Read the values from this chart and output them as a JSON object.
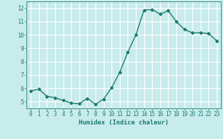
{
  "x": [
    0,
    1,
    2,
    3,
    4,
    5,
    6,
    7,
    8,
    9,
    10,
    11,
    12,
    13,
    14,
    15,
    16,
    17,
    18,
    19,
    20,
    21,
    22,
    23
  ],
  "y": [
    5.8,
    5.95,
    5.4,
    5.3,
    5.1,
    4.9,
    4.85,
    5.25,
    4.8,
    5.2,
    6.05,
    7.2,
    8.7,
    10.0,
    11.85,
    11.9,
    11.55,
    11.8,
    11.0,
    10.4,
    10.15,
    10.15,
    10.1,
    9.55
  ],
  "line_color": "#1a7a6e",
  "marker": "D",
  "marker_size": 2,
  "background_color": "#c8ebeb",
  "grid_color": "#ffffff",
  "xlabel": "Humidex (Indice chaleur)",
  "ylim": [
    4.5,
    12.5
  ],
  "xlim": [
    -0.5,
    23.5
  ],
  "yticks": [
    5,
    6,
    7,
    8,
    9,
    10,
    11,
    12
  ],
  "xticks": [
    0,
    1,
    2,
    3,
    4,
    5,
    6,
    7,
    8,
    9,
    10,
    11,
    12,
    13,
    14,
    15,
    16,
    17,
    18,
    19,
    20,
    21,
    22,
    23
  ],
  "tick_fontsize": 5.5,
  "xlabel_fontsize": 6.5,
  "line_width": 1.0
}
